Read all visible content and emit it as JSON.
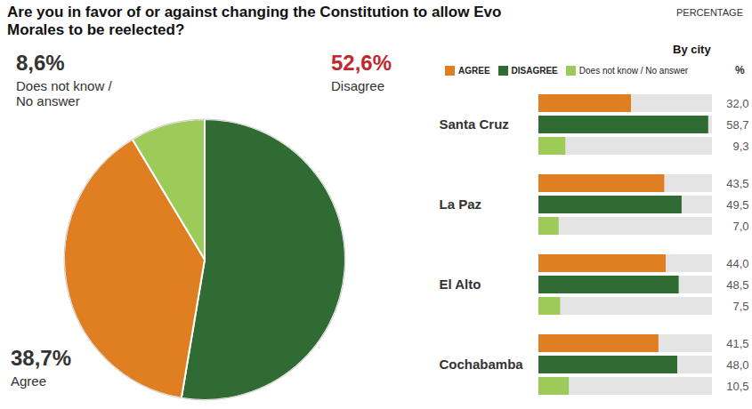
{
  "chart_data": [
    {
      "type": "pie",
      "title": "Are you in favor of or against changing the Constitution to allow Evo Morales to be reelected?",
      "categories": [
        "Disagree",
        "Agree",
        "Does not know / No answer"
      ],
      "values": [
        52.6,
        38.7,
        8.6
      ],
      "value_labels": [
        "52,6%",
        "38,7%",
        "8,6%"
      ],
      "colors": [
        "#2f6b33",
        "#e07f22",
        "#9ccb5a"
      ],
      "data_labels": true
    },
    {
      "type": "bar",
      "orientation": "horizontal",
      "title": "By city",
      "annotations": [
        "PERCENTAGE"
      ],
      "xlabel": "%",
      "categories": [
        "Santa Cruz",
        "La Paz",
        "El Alto",
        "Cochabamba"
      ],
      "series": [
        {
          "name": "AGREE",
          "color": "#e07f22",
          "values": [
            32.0,
            43.5,
            44.0,
            41.5
          ],
          "value_labels": [
            "32,0",
            "43,5",
            "44,0",
            "41,5"
          ]
        },
        {
          "name": "DISAGREE",
          "color": "#2f6b33",
          "values": [
            58.7,
            49.5,
            48.5,
            48.0
          ],
          "value_labels": [
            "58,7",
            "49,5",
            "48,5",
            "48,0"
          ]
        },
        {
          "name": "Does not know / No answer",
          "color": "#9ccb5a",
          "values": [
            9.3,
            7.0,
            7.5,
            10.5
          ],
          "value_labels": [
            "9,3",
            "7,0",
            "7,5",
            "10,5"
          ]
        }
      ],
      "xlim": [
        0,
        60
      ],
      "tick_labels": false,
      "data_labels": true,
      "legend": "top"
    }
  ]
}
